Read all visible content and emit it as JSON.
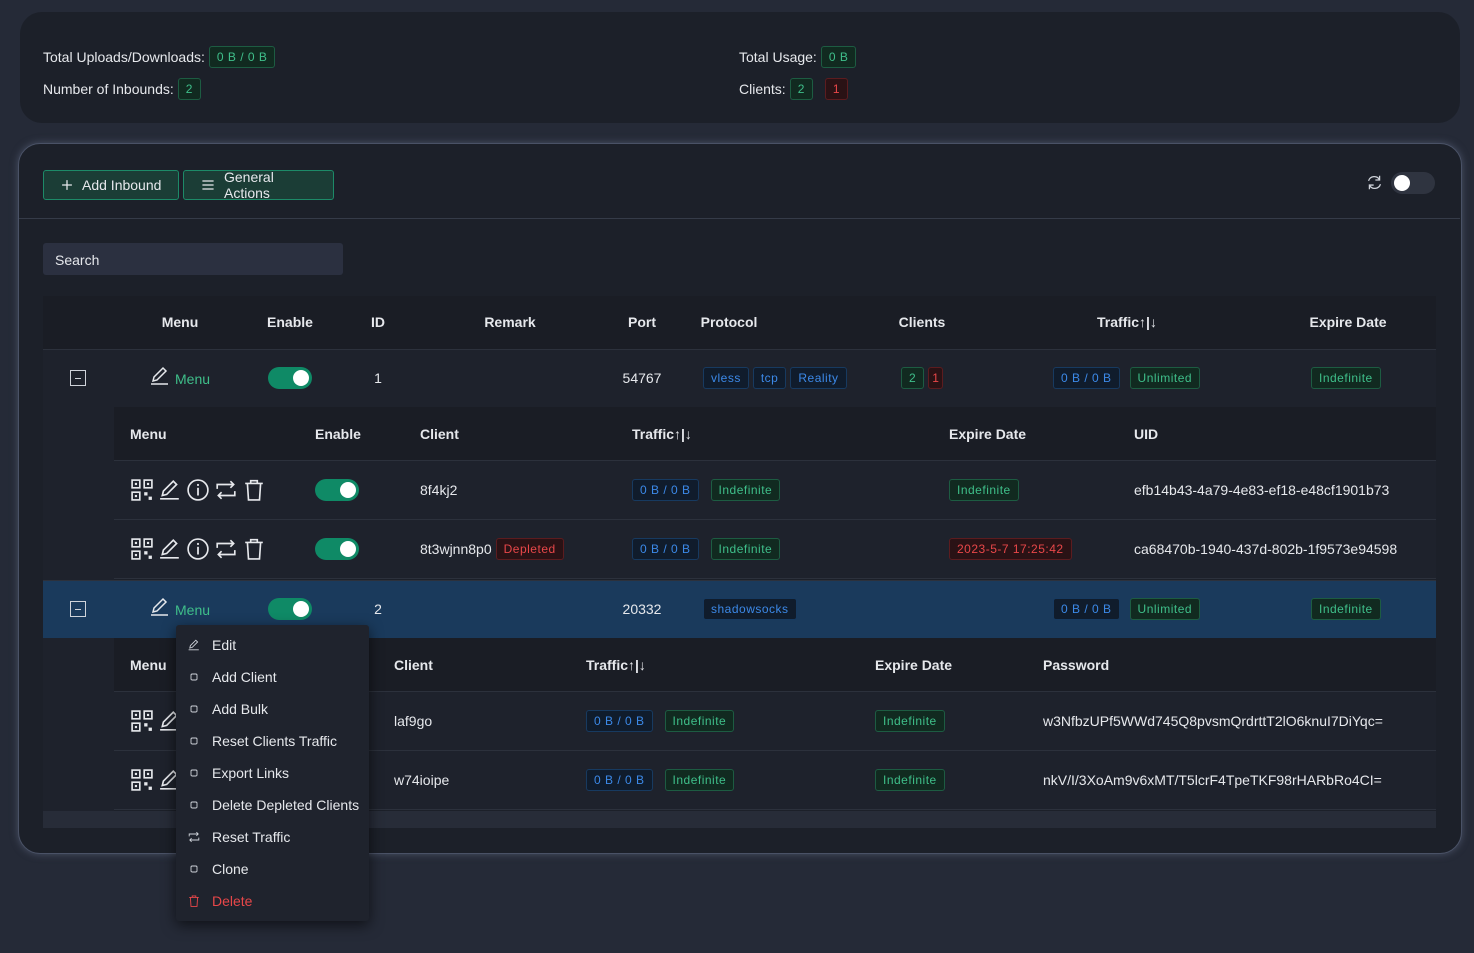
{
  "stats": {
    "total_traffic": {
      "label": "Total Uploads/Downloads:",
      "value": "0 B / 0 B"
    },
    "inbound_count": {
      "label": "Number of Inbounds:",
      "value": 2
    },
    "total_usage": {
      "label": "Total Usage:",
      "value": "0 B"
    },
    "clients": {
      "label": "Clients:",
      "active": 2,
      "depleted": 1
    }
  },
  "toolbar": {
    "add_inbound": "Add Inbound",
    "general_actions": "General Actions"
  },
  "search": {
    "placeholder": "Search"
  },
  "inbounds": {
    "headers": [
      "Menu",
      "Enable",
      "ID",
      "Remark",
      "Port",
      "Protocol",
      "Clients",
      "Traffic↑|↓",
      "Expire Date"
    ],
    "rows": [
      {
        "menu": "Menu",
        "id": 1,
        "port": 54767,
        "protocol": [
          "vless",
          "tcp",
          "Reality"
        ],
        "clients": {
          "active": 2,
          "depleted": 1
        },
        "traffic": "0 B / 0 B",
        "total": "Unlimited",
        "expire": "Indefinite",
        "client_table": {
          "headers": [
            "Menu",
            "Enable",
            "Client",
            "Traffic↑|↓",
            "Expire Date",
            "UID"
          ],
          "rows": [
            {
              "name": "8f4kj2",
              "traffic": "0 B / 0 B",
              "limit": "Indefinite",
              "expire": "Indefinite",
              "uid": "efb14b43-4a79-4e83-ef18-e48cf1901b73"
            },
            {
              "name": "8t3wjnn8p0",
              "status": "Depleted",
              "traffic": "0 B / 0 B",
              "limit": "Indefinite",
              "expire": "2023-5-7 17:25:42",
              "uid": "ca68470b-1940-437d-802b-1f9573e94598"
            }
          ]
        }
      },
      {
        "menu": "Menu",
        "id": 2,
        "port": 20332,
        "protocol": [
          "shadowsocks"
        ],
        "traffic": "0 B / 0 B",
        "total": "Unlimited",
        "expire": "Indefinite",
        "client_table": {
          "headers": [
            "Menu",
            "Client",
            "Traffic↑|↓",
            "Expire Date",
            "Password"
          ],
          "rows": [
            {
              "name": "laf9go",
              "traffic": "0 B / 0 B",
              "limit": "Indefinite",
              "expire": "Indefinite",
              "password": "w3NfbzUPf5WWd745Q8pvsmQrdrttT2lO6knuI7DiYqc="
            },
            {
              "name": "w74ioipe",
              "traffic": "0 B / 0 B",
              "limit": "Indefinite",
              "expire": "Indefinite",
              "password": "nkV/I/3XoAm9v6xMT/T5lcrF4TpeTKF98rHARbRo4CI="
            }
          ]
        }
      }
    ]
  },
  "context_menu": {
    "items": [
      "Edit",
      "Add Client",
      "Add Bulk",
      "Reset Clients Traffic",
      "Export Links",
      "Delete Depleted Clients",
      "Reset Traffic",
      "Clone",
      "Delete"
    ]
  }
}
